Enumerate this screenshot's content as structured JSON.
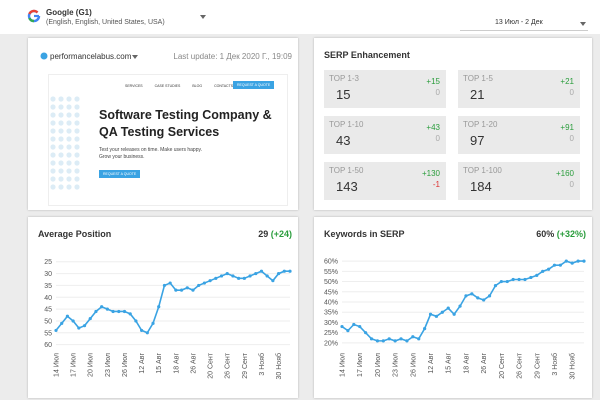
{
  "header": {
    "engine": "Google (G1)",
    "locale": "(English, English, United States, USA)",
    "date_range": "13 Июл - 2 Дек"
  },
  "site": {
    "domain": "performancelabus.com",
    "last_update": "Last update: 1 Дек 2020 Г., 19:09",
    "preview": {
      "nav": [
        "SERVICES",
        "CASE STUDIES",
        "BLOG",
        "CONTACTS"
      ],
      "cta_top": "REQUEST A QUOTE",
      "headline": [
        "Software Testing Company &",
        "QA Testing Services"
      ],
      "body": [
        "Test your releases on time. Make users happy.",
        "Grow your business."
      ],
      "cta": "REQUEST A QUOTE"
    }
  },
  "serp": {
    "title": "SERP Enhancement",
    "cards": [
      {
        "label": "TOP 1-3",
        "value": "15",
        "change": "+15",
        "delta": "0"
      },
      {
        "label": "TOP 1-5",
        "value": "21",
        "change": "+21",
        "delta": "0"
      },
      {
        "label": "TOP 1-10",
        "value": "43",
        "change": "+43",
        "delta": "0"
      },
      {
        "label": "TOP 1-20",
        "value": "97",
        "change": "+91",
        "delta": "0"
      },
      {
        "label": "TOP 1-50",
        "value": "143",
        "change": "+130",
        "delta": "-1"
      },
      {
        "label": "TOP 1-100",
        "value": "184",
        "change": "+160",
        "delta": "0"
      }
    ]
  },
  "chart_data": [
    {
      "type": "line",
      "title": "Average Position",
      "summary": "29",
      "change": "(+24)",
      "color": "#3aa3e3",
      "grid": true,
      "categories": [
        "14 Июл",
        null,
        null,
        "17 Июл",
        null,
        null,
        "20 Июл",
        null,
        null,
        "23 Июл",
        null,
        null,
        "26 Июл",
        null,
        null,
        "12 Авг",
        null,
        null,
        "15 Авг",
        null,
        null,
        "18 Авг",
        null,
        null,
        "26 Авг",
        null,
        null,
        "20 Сент",
        null,
        null,
        "26 Сент",
        null,
        null,
        "29 Сент",
        null,
        null,
        "3 Нояб",
        null,
        null,
        "30 Нояб",
        null,
        null
      ],
      "values": [
        54,
        51,
        48,
        50,
        53,
        52,
        49,
        46,
        44,
        45,
        46,
        46,
        46,
        47,
        50,
        54,
        55,
        51,
        44,
        35,
        34,
        37,
        37,
        36,
        37,
        35,
        34,
        33,
        32,
        31,
        30,
        31,
        32,
        32,
        31,
        30,
        29,
        31,
        33,
        30,
        29,
        29
      ],
      "ylim": [
        61,
        23
      ],
      "yticks": [
        25,
        30,
        35,
        40,
        45,
        50,
        55,
        60
      ]
    },
    {
      "type": "line",
      "title": "Keywords in SERP",
      "summary": "60%",
      "change": "(+32%)",
      "color": "#3aa3e3",
      "grid": true,
      "categories": [
        "14 Июл",
        null,
        null,
        "17 Июл",
        null,
        null,
        "20 Июл",
        null,
        null,
        "23 Июл",
        null,
        null,
        "26 Июл",
        null,
        null,
        "12 Авг",
        null,
        null,
        "15 Авг",
        null,
        null,
        "18 Авг",
        null,
        null,
        "26 Авг",
        null,
        null,
        "20 Сент",
        null,
        null,
        "26 Сент",
        null,
        null,
        "29 Сент",
        null,
        null,
        "3 Нояб",
        null,
        null,
        "30 Нояб",
        null,
        null
      ],
      "values": [
        28,
        26,
        29,
        28,
        25,
        22,
        21,
        21,
        22,
        21,
        22,
        21,
        23,
        22,
        27,
        34,
        33,
        35,
        37,
        34,
        38,
        43,
        44,
        42,
        41,
        43,
        48,
        50,
        50,
        51,
        51,
        51,
        52,
        53,
        55,
        56,
        58,
        58,
        60,
        59,
        60,
        60
      ],
      "ylim": [
        18,
        62
      ],
      "yticks": [
        {
          "value": 20,
          "label": "20%"
        },
        {
          "value": 25,
          "label": "25%"
        },
        {
          "value": 30,
          "label": "30%"
        },
        {
          "value": 35,
          "label": "35%"
        },
        {
          "value": 40,
          "label": "40%"
        },
        {
          "value": 45,
          "label": "45%"
        },
        {
          "value": 50,
          "label": "50%"
        },
        {
          "value": 55,
          "label": "55%"
        },
        {
          "value": 60,
          "label": "60%"
        }
      ]
    }
  ]
}
